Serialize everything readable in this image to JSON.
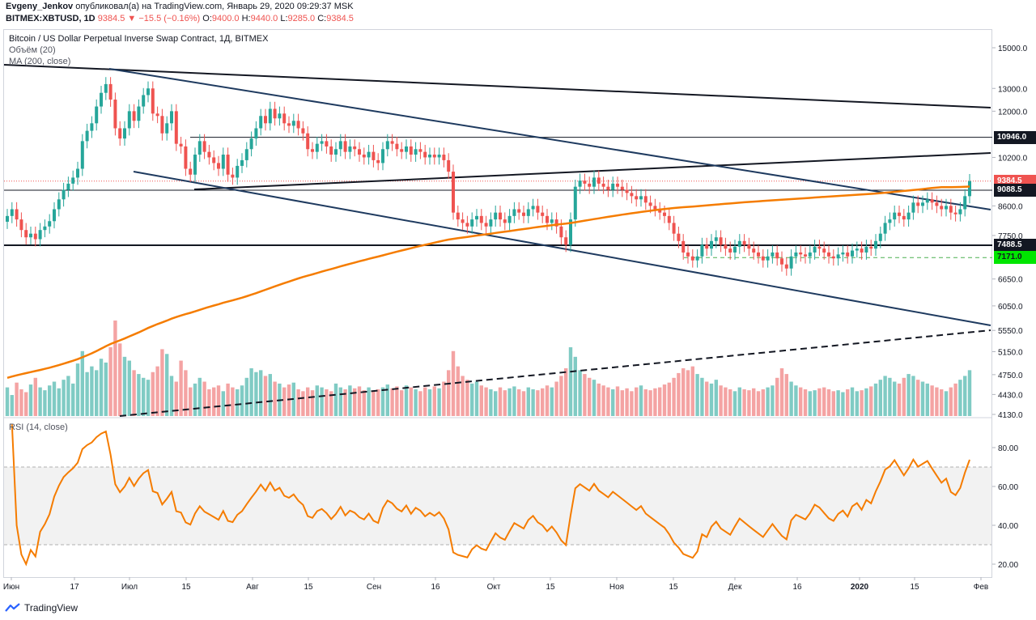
{
  "header": {
    "author": "Evgeny_Jenkov",
    "published": "опубликовал(а) на TradingView.com, Январь 29, 2020 09:29:37 MSK",
    "symbol": "BITMEX:XBTUSD, 1D",
    "last": "9384.5",
    "arrow": "▼",
    "change": "−15.5 (−0.16%)",
    "o_label": "O:",
    "o_val": "9400.0",
    "h_label": "H:",
    "h_val": "9440.0",
    "l_label": "L:",
    "l_val": "9285.0",
    "c_label": "C:",
    "c_val": "9384.5"
  },
  "legend": {
    "title": "Bitcoin / US Dollar Perpetual Inverse Swap Contract, 1Д, BITMEX",
    "volume": "Объём (20)",
    "ma": "MA (200, close)",
    "rsi": "RSI (14, close)"
  },
  "branding": {
    "name": "TradingView"
  },
  "colors": {
    "up": "#26a69a",
    "down": "#ef5350",
    "ma": "#f57c00",
    "rsi": "#f57c00",
    "channel": "#1e3a5f"
  },
  "chart_data": {
    "type": "candlestick",
    "yscale": "log",
    "price_ticks": [
      "15000.0",
      "13000.0",
      "12000.0",
      "10200.0",
      "8600.0",
      "7750.0",
      "6650.0",
      "6050.0",
      "5550.0",
      "5150.0",
      "4750.0",
      "4430.0",
      "4130.0"
    ],
    "price_labels": [
      {
        "text": "10946.0",
        "price": 10946,
        "style": "dark"
      },
      {
        "text": "9384.5",
        "price": 9384.5,
        "style": "last"
      },
      {
        "text": "9088.5",
        "price": 9088.5,
        "style": "dark"
      },
      {
        "text": "7488.5",
        "price": 7488.5,
        "style": "dark"
      },
      {
        "text": "7171.0",
        "price": 7171,
        "style": "green"
      }
    ],
    "horizontal_levels": [
      10946,
      9088.5,
      7488.5,
      7171
    ],
    "x_labels": [
      "Июн",
      "17",
      "Июл",
      "15",
      "Авг",
      "15",
      "Сен",
      "16",
      "Окт",
      "15",
      "Ноя",
      "15",
      "Дек",
      "16",
      "2020",
      "15",
      "Фев"
    ],
    "rsi_ticks": [
      "80.00",
      "60.00",
      "40.00",
      "20.00"
    ],
    "rsi_band": [
      30,
      70
    ],
    "rsi_range": [
      12,
      92
    ],
    "closes": [
      8300,
      8500,
      8200,
      7900,
      7700,
      7800,
      7650,
      7900,
      8000,
      8150,
      8500,
      8800,
      9100,
      9300,
      9500,
      9800,
      10800,
      11200,
      11500,
      12200,
      12800,
      13200,
      12500,
      11300,
      10900,
      11300,
      12000,
      11600,
      12200,
      12700,
      13000,
      11900,
      11800,
      11100,
      11500,
      12000,
      10700,
      10600,
      9800,
      9600,
      10300,
      10800,
      10400,
      10200,
      10000,
      9800,
      10300,
      9600,
      9500,
      9900,
      10100,
      10500,
      10900,
      11300,
      11800,
      11500,
      12100,
      11700,
      11900,
      11500,
      11400,
      11600,
      11300,
      11100,
      10500,
      10400,
      10700,
      10800,
      10600,
      10300,
      10500,
      10800,
      10400,
      10600,
      10500,
      10300,
      10200,
      10400,
      10100,
      10000,
      10500,
      10800,
      10700,
      10500,
      10400,
      10600,
      10300,
      10500,
      10400,
      10200,
      10300,
      10200,
      10300,
      10100,
      9700,
      8400,
      8200,
      8100,
      8000,
      8200,
      8300,
      8100,
      8000,
      8200,
      8400,
      8200,
      8100,
      8300,
      8500,
      8400,
      8300,
      8500,
      8600,
      8400,
      8300,
      8100,
      8200,
      8000,
      7700,
      7500,
      8200,
      9200,
      9400,
      9300,
      9200,
      9500,
      9300,
      9200,
      9100,
      9300,
      9200,
      9100,
      9000,
      8900,
      8800,
      8900,
      8700,
      8600,
      8500,
      8400,
      8300,
      8100,
      7800,
      7600,
      7300,
      7200,
      7100,
      7200,
      7500,
      7400,
      7600,
      7700,
      7500,
      7400,
      7300,
      7450,
      7600,
      7500,
      7400,
      7300,
      7200,
      7100,
      7200,
      7300,
      7150,
      7000,
      6900,
      7200,
      7300,
      7250,
      7200,
      7300,
      7450,
      7400,
      7300,
      7200,
      7150,
      7250,
      7300,
      7200,
      7350,
      7400,
      7300,
      7450,
      7400,
      7600,
      7800,
      8100,
      8200,
      8400,
      8300,
      8200,
      8400,
      8700,
      8600,
      8700,
      8800,
      8700,
      8600,
      8500,
      8600,
      8400,
      8350,
      8500,
      8900,
      9384.5
    ],
    "volume_rel": [
      0.3,
      0.22,
      0.35,
      0.28,
      0.25,
      0.33,
      0.4,
      0.3,
      0.27,
      0.32,
      0.36,
      0.29,
      0.38,
      0.42,
      0.34,
      0.55,
      0.68,
      0.46,
      0.52,
      0.48,
      0.6,
      0.56,
      0.72,
      1.0,
      0.76,
      0.62,
      0.58,
      0.48,
      0.44,
      0.4,
      0.38,
      0.46,
      0.52,
      0.7,
      0.65,
      0.42,
      0.36,
      0.58,
      0.48,
      0.3,
      0.34,
      0.4,
      0.36,
      0.28,
      0.3,
      0.32,
      0.26,
      0.34,
      0.3,
      0.28,
      0.32,
      0.4,
      0.5,
      0.46,
      0.48,
      0.42,
      0.44,
      0.36,
      0.34,
      0.3,
      0.33,
      0.35,
      0.28,
      0.26,
      0.3,
      0.27,
      0.32,
      0.3,
      0.28,
      0.26,
      0.34,
      0.3,
      0.28,
      0.32,
      0.29,
      0.31,
      0.27,
      0.3,
      0.26,
      0.28,
      0.3,
      0.33,
      0.29,
      0.31,
      0.27,
      0.32,
      0.3,
      0.28,
      0.26,
      0.3,
      0.28,
      0.31,
      0.29,
      0.36,
      0.48,
      0.68,
      0.52,
      0.42,
      0.38,
      0.34,
      0.36,
      0.32,
      0.3,
      0.28,
      0.26,
      0.3,
      0.27,
      0.29,
      0.31,
      0.28,
      0.26,
      0.3,
      0.28,
      0.27,
      0.29,
      0.32,
      0.3,
      0.36,
      0.42,
      0.5,
      0.72,
      0.62,
      0.48,
      0.44,
      0.4,
      0.38,
      0.34,
      0.32,
      0.3,
      0.28,
      0.31,
      0.27,
      0.29,
      0.26,
      0.3,
      0.32,
      0.28,
      0.27,
      0.29,
      0.3,
      0.33,
      0.35,
      0.4,
      0.45,
      0.5,
      0.48,
      0.52,
      0.44,
      0.4,
      0.36,
      0.34,
      0.38,
      0.32,
      0.3,
      0.28,
      0.26,
      0.3,
      0.28,
      0.27,
      0.29,
      0.26,
      0.28,
      0.3,
      0.32,
      0.4,
      0.5,
      0.44,
      0.36,
      0.32,
      0.3,
      0.28,
      0.26,
      0.27,
      0.29,
      0.3,
      0.28,
      0.26,
      0.27,
      0.25,
      0.28,
      0.3,
      0.26,
      0.27,
      0.29,
      0.31,
      0.34,
      0.38,
      0.42,
      0.4,
      0.36,
      0.34,
      0.4,
      0.44,
      0.42,
      0.38,
      0.36,
      0.34,
      0.32,
      0.3,
      0.28,
      0.26,
      0.3,
      0.34,
      0.38,
      0.42,
      0.48
    ]
  }
}
